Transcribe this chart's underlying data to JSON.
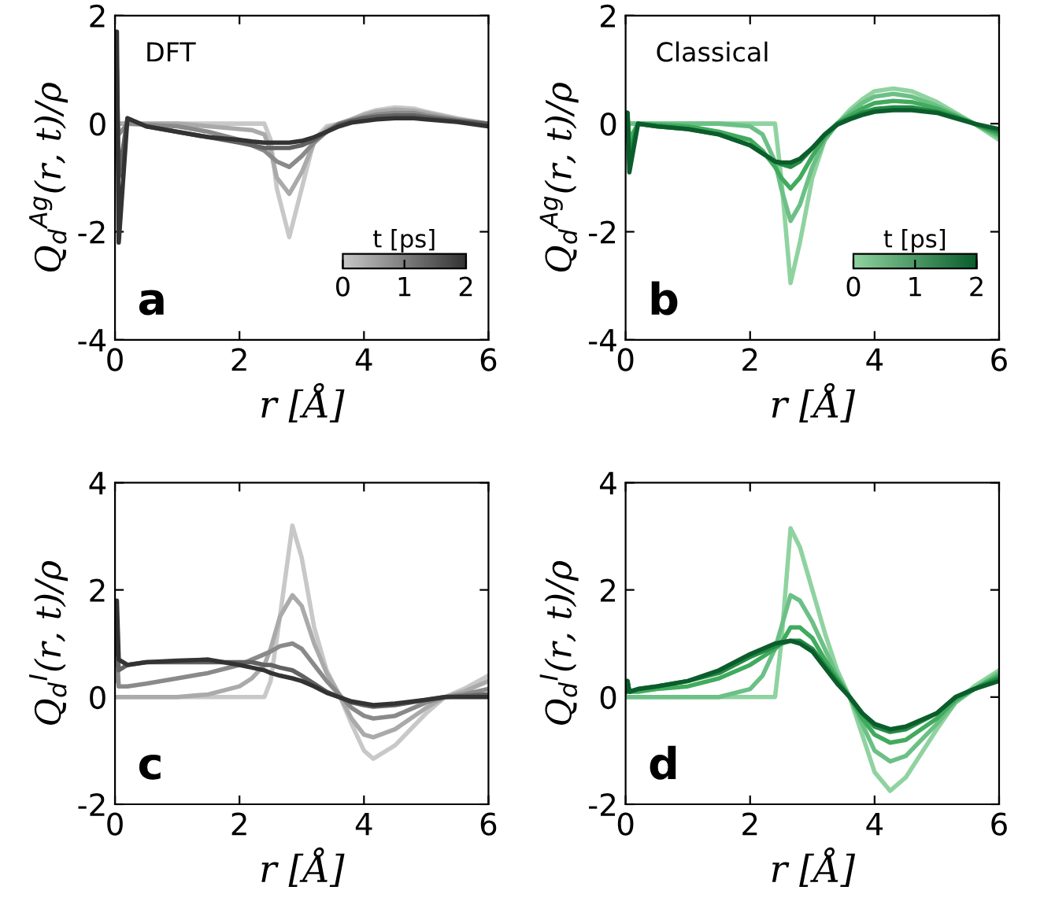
{
  "chart_data": [
    {
      "type": "line",
      "title": "DFT",
      "xlabel": "r [Å]",
      "ylabel": "Q$_{d}$$^{Ag}$(r, t)/ρ",
      "clabel": "t [ps]",
      "clim": [
        0,
        2
      ],
      "cticks": [
        0,
        1,
        2
      ],
      "annotations": [
        "a"
      ],
      "xlim": [
        0,
        6
      ],
      "ylim": [
        -4,
        2
      ],
      "xticks": [
        0,
        2,
        4,
        6
      ],
      "yticks": [
        -4,
        -2,
        0,
        2
      ],
      "grid": false,
      "legend": false,
      "line_style": "solid",
      "marker": "none",
      "x": [
        0,
        0.03,
        0.06,
        0.2,
        0.5,
        1.0,
        1.5,
        2.0,
        2.2,
        2.4,
        2.5,
        2.6,
        2.8,
        3.0,
        3.2,
        3.4,
        3.6,
        3.8,
        4.0,
        4.2,
        4.5,
        4.8,
        5.0,
        5.5,
        6.0
      ],
      "series": [
        {
          "color": "#c8c8c8",
          "values": [
            0,
            0,
            0,
            0,
            0,
            0,
            0,
            0,
            0,
            0,
            -0.3,
            -1.2,
            -2.1,
            -1.2,
            -0.3,
            -0.05,
            0.0,
            0.08,
            0.18,
            0.25,
            0.3,
            0.28,
            0.22,
            0.1,
            0
          ]
        },
        {
          "color": "#aaaaaa",
          "values": [
            0,
            0,
            0,
            0,
            0,
            0,
            -0.05,
            -0.1,
            -0.12,
            -0.2,
            -0.5,
            -1.0,
            -1.3,
            -0.9,
            -0.35,
            -0.1,
            0.0,
            0.08,
            0.16,
            0.22,
            0.26,
            0.24,
            0.2,
            0.08,
            0
          ]
        },
        {
          "color": "#8a8a8a",
          "values": [
            0.1,
            0.2,
            -0.2,
            0,
            -0.02,
            -0.05,
            -0.15,
            -0.3,
            -0.4,
            -0.5,
            -0.6,
            -0.7,
            -0.8,
            -0.6,
            -0.35,
            -0.15,
            0,
            0.06,
            0.12,
            0.17,
            0.2,
            0.2,
            0.15,
            0.07,
            0
          ]
        },
        {
          "color": "#626262",
          "values": [
            0.5,
            1.0,
            -1.0,
            0.1,
            -0.05,
            -0.15,
            -0.25,
            -0.35,
            -0.4,
            -0.45,
            -0.45,
            -0.45,
            -0.45,
            -0.4,
            -0.3,
            -0.15,
            -0.02,
            0.05,
            0.1,
            0.13,
            0.15,
            0.15,
            0.12,
            0.05,
            0
          ]
        },
        {
          "color": "#333333",
          "values": [
            0.8,
            1.7,
            -2.2,
            0.1,
            -0.05,
            -0.15,
            -0.25,
            -0.3,
            -0.33,
            -0.35,
            -0.35,
            -0.35,
            -0.35,
            -0.32,
            -0.25,
            -0.15,
            -0.05,
            0.02,
            0.05,
            0.08,
            0.1,
            0.1,
            0.08,
            0.03,
            -0.05
          ]
        }
      ]
    },
    {
      "type": "line",
      "title": "Classical",
      "xlabel": "r [Å]",
      "ylabel": "Q$_{d}$$^{Ag}$(r, t)/ρ",
      "clabel": "t [ps]",
      "clim": [
        0,
        2
      ],
      "cticks": [
        0,
        1,
        2
      ],
      "annotations": [
        "b"
      ],
      "xlim": [
        0,
        6
      ],
      "ylim": [
        -4,
        2
      ],
      "xticks": [
        0,
        2,
        4,
        6
      ],
      "yticks": [
        -4,
        -2,
        0,
        2
      ],
      "grid": false,
      "legend": false,
      "line_style": "solid",
      "marker": "none",
      "x": [
        0,
        0.03,
        0.06,
        0.2,
        0.5,
        1.0,
        1.5,
        2.0,
        2.2,
        2.4,
        2.5,
        2.65,
        2.8,
        3.0,
        3.2,
        3.4,
        3.6,
        3.8,
        4.0,
        4.3,
        4.6,
        5.0,
        5.3,
        5.6,
        6.0
      ],
      "series": [
        {
          "color": "#8fd3a0",
          "values": [
            0,
            0,
            0,
            0,
            0,
            0,
            0,
            0,
            0,
            0,
            -1.0,
            -2.95,
            -2.2,
            -1.0,
            -0.3,
            0.0,
            0.25,
            0.45,
            0.6,
            0.65,
            0.6,
            0.4,
            0.2,
            0.0,
            -0.3
          ]
        },
        {
          "color": "#6cc086",
          "values": [
            0,
            0,
            0,
            0,
            0,
            0,
            0,
            -0.05,
            -0.2,
            -0.7,
            -1.2,
            -1.8,
            -1.5,
            -0.8,
            -0.3,
            0.0,
            0.2,
            0.38,
            0.5,
            0.55,
            0.5,
            0.33,
            0.17,
            0.0,
            -0.25
          ]
        },
        {
          "color": "#41ab5d",
          "values": [
            0.1,
            0.2,
            -0.3,
            0.0,
            -0.02,
            -0.05,
            -0.15,
            -0.3,
            -0.5,
            -0.8,
            -1.0,
            -1.2,
            -1.0,
            -0.6,
            -0.25,
            0.0,
            0.15,
            0.28,
            0.38,
            0.42,
            0.4,
            0.28,
            0.14,
            0.0,
            -0.2
          ]
        },
        {
          "color": "#238b45",
          "values": [
            0.1,
            0.2,
            -0.6,
            0.0,
            -0.05,
            -0.1,
            -0.2,
            -0.4,
            -0.55,
            -0.7,
            -0.75,
            -0.8,
            -0.7,
            -0.45,
            -0.2,
            0.0,
            0.1,
            0.2,
            0.27,
            0.3,
            0.3,
            0.22,
            0.12,
            0.0,
            -0.15
          ]
        },
        {
          "color": "#0b5d2c",
          "values": [
            0.1,
            0.2,
            -0.9,
            0.0,
            -0.05,
            -0.1,
            -0.2,
            -0.4,
            -0.55,
            -0.7,
            -0.72,
            -0.72,
            -0.65,
            -0.45,
            -0.2,
            -0.02,
            0.08,
            0.16,
            0.22,
            0.25,
            0.25,
            0.2,
            0.1,
            0.0,
            -0.1
          ]
        }
      ]
    },
    {
      "type": "line",
      "xlabel": "r [Å]",
      "ylabel": "Q$_{d}$$^{I}$(r, t)/ρ",
      "annotations": [
        "c"
      ],
      "xlim": [
        0,
        6
      ],
      "ylim": [
        -2,
        4
      ],
      "xticks": [
        0,
        2,
        4,
        6
      ],
      "yticks": [
        -2,
        0,
        2,
        4
      ],
      "grid": false,
      "legend": false,
      "line_style": "solid",
      "marker": "none",
      "x": [
        0,
        0.03,
        0.06,
        0.2,
        0.5,
        1.0,
        1.5,
        2.0,
        2.2,
        2.4,
        2.5,
        2.65,
        2.85,
        3.0,
        3.2,
        3.4,
        3.6,
        3.8,
        4.0,
        4.15,
        4.5,
        5.0,
        5.3,
        5.6,
        6.0
      ],
      "series": [
        {
          "color": "#c8c8c8",
          "values": [
            0,
            0,
            0,
            0,
            0,
            0,
            0,
            0,
            0,
            0,
            0.3,
            1.5,
            3.2,
            2.6,
            1.3,
            0.5,
            0.05,
            -0.5,
            -1.0,
            -1.15,
            -0.9,
            -0.3,
            0.0,
            0.15,
            0.4
          ]
        },
        {
          "color": "#aaaaaa",
          "values": [
            0,
            0,
            0,
            0,
            0,
            0,
            0.05,
            0.2,
            0.35,
            0.6,
            0.9,
            1.5,
            1.9,
            1.7,
            1.0,
            0.45,
            0.05,
            -0.4,
            -0.7,
            -0.75,
            -0.6,
            -0.2,
            0.0,
            0.1,
            0.3
          ]
        },
        {
          "color": "#8a8a8a",
          "values": [
            0.3,
            0.8,
            0.2,
            0.2,
            0.25,
            0.35,
            0.45,
            0.6,
            0.7,
            0.8,
            0.85,
            0.95,
            1.0,
            0.9,
            0.6,
            0.3,
            0.05,
            -0.2,
            -0.35,
            -0.4,
            -0.35,
            -0.1,
            0.0,
            0.05,
            0.15
          ]
        },
        {
          "color": "#626262",
          "values": [
            0.6,
            1.2,
            0.5,
            0.6,
            0.65,
            0.65,
            0.65,
            0.65,
            0.65,
            0.6,
            0.6,
            0.55,
            0.5,
            0.4,
            0.25,
            0.1,
            0.0,
            -0.1,
            -0.15,
            -0.18,
            -0.15,
            -0.05,
            0.0,
            0.02,
            0.05
          ]
        },
        {
          "color": "#333333",
          "values": [
            0.8,
            1.8,
            0.7,
            0.6,
            0.65,
            0.68,
            0.7,
            0.6,
            0.55,
            0.5,
            0.45,
            0.4,
            0.35,
            0.3,
            0.2,
            0.08,
            0.0,
            -0.08,
            -0.12,
            -0.15,
            -0.12,
            -0.05,
            0.0,
            0.0,
            0.0
          ]
        }
      ]
    },
    {
      "type": "line",
      "xlabel": "r [Å]",
      "ylabel": "Q$_{d}$$^{I}$(r, t)/ρ",
      "annotations": [
        "d"
      ],
      "xlim": [
        0,
        6
      ],
      "ylim": [
        -2,
        4
      ],
      "xticks": [
        0,
        2,
        4,
        6
      ],
      "yticks": [
        -2,
        0,
        2,
        4
      ],
      "grid": false,
      "legend": false,
      "line_style": "solid",
      "marker": "none",
      "x": [
        0,
        0.03,
        0.06,
        0.2,
        0.5,
        1.0,
        1.5,
        2.0,
        2.2,
        2.4,
        2.5,
        2.65,
        2.8,
        3.0,
        3.2,
        3.4,
        3.6,
        3.8,
        4.0,
        4.25,
        4.5,
        5.0,
        5.3,
        5.6,
        6.0
      ],
      "series": [
        {
          "color": "#8fd3a0",
          "values": [
            0,
            0,
            0,
            0,
            0,
            0,
            0,
            0,
            0,
            0,
            1.0,
            3.15,
            2.8,
            2.0,
            1.2,
            0.5,
            0.0,
            -0.7,
            -1.4,
            -1.75,
            -1.5,
            -0.6,
            -0.1,
            0.2,
            0.5
          ]
        },
        {
          "color": "#6cc086",
          "values": [
            0,
            0,
            0,
            0,
            0,
            0,
            0,
            0.15,
            0.4,
            0.9,
            1.3,
            1.9,
            1.8,
            1.4,
            0.9,
            0.4,
            0.0,
            -0.5,
            -1.0,
            -1.2,
            -1.1,
            -0.5,
            -0.1,
            0.15,
            0.45
          ]
        },
        {
          "color": "#41ab5d",
          "values": [
            0.1,
            0.3,
            0.1,
            0.1,
            0.15,
            0.2,
            0.35,
            0.6,
            0.75,
            0.9,
            1.0,
            1.3,
            1.3,
            1.1,
            0.7,
            0.35,
            0.0,
            -0.4,
            -0.7,
            -0.85,
            -0.8,
            -0.4,
            -0.05,
            0.15,
            0.4
          ]
        },
        {
          "color": "#238b45",
          "values": [
            0.1,
            0.3,
            0.1,
            0.15,
            0.2,
            0.3,
            0.45,
            0.75,
            0.85,
            0.95,
            1.0,
            1.05,
            1.05,
            0.9,
            0.6,
            0.3,
            0.0,
            -0.3,
            -0.55,
            -0.65,
            -0.6,
            -0.3,
            0.0,
            0.15,
            0.35
          ]
        },
        {
          "color": "#0b5d2c",
          "values": [
            0.1,
            0.3,
            0.1,
            0.15,
            0.2,
            0.3,
            0.5,
            0.8,
            0.9,
            1.0,
            1.02,
            1.05,
            1.0,
            0.85,
            0.55,
            0.25,
            0.0,
            -0.3,
            -0.5,
            -0.6,
            -0.55,
            -0.3,
            0.0,
            0.15,
            0.3
          ]
        }
      ]
    }
  ]
}
